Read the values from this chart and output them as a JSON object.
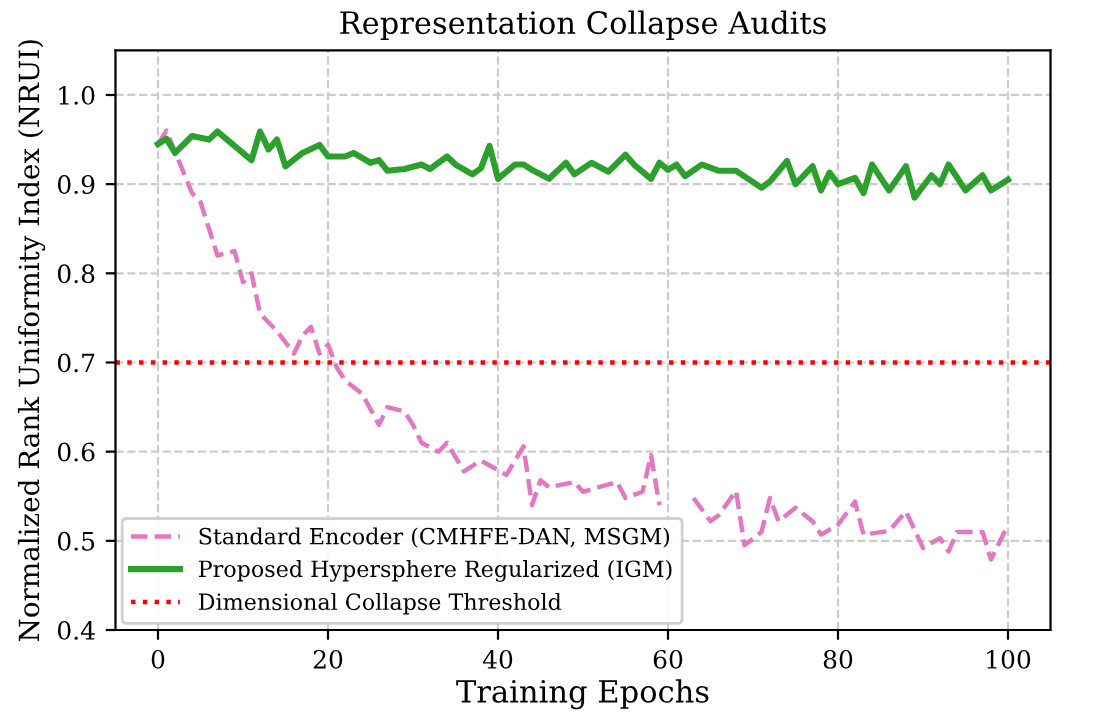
{
  "chart_data": {
    "type": "line",
    "title": "Representation Collapse Audits",
    "xlabel": "Training Epochs",
    "ylabel": "Normalized Rank Uniformity Index (NRUI)",
    "xlim": [
      -5,
      105
    ],
    "xticks": [
      0,
      20,
      40,
      60,
      80,
      100
    ],
    "ylim": [
      0.4,
      1.05
    ],
    "yticks": [
      0.4,
      0.5,
      0.6,
      0.7,
      0.8,
      0.9,
      {
        "value": 1.0,
        "label": "1.0"
      }
    ],
    "grid": true,
    "legend": "bottom left",
    "series": [
      {
        "name": "Standard Encoder (CMHFE-DAN, MSGM)",
        "color": "#e377c2",
        "line_style": "dashed",
        "x": [
          0,
          1,
          4,
          5,
          7,
          9,
          10,
          11,
          12,
          14,
          16,
          17,
          18,
          19,
          20,
          21,
          22,
          24,
          26,
          27,
          29,
          30,
          31,
          33,
          34,
          36,
          38,
          41,
          43,
          44,
          45,
          46,
          49,
          50,
          54,
          55,
          57,
          58,
          59,
          60,
          63,
          65,
          66,
          68,
          69,
          71,
          72,
          73,
          75,
          77,
          78,
          80,
          82,
          83,
          86,
          88,
          90,
          92,
          93,
          94,
          97,
          98,
          100
        ],
        "values": [
          0.945,
          0.96,
          0.89,
          0.88,
          0.82,
          0.825,
          0.79,
          0.8,
          0.755,
          0.735,
          0.71,
          0.73,
          0.74,
          0.71,
          0.72,
          0.695,
          0.68,
          0.665,
          0.63,
          0.65,
          0.645,
          0.63,
          0.61,
          0.6,
          0.61,
          0.578,
          0.59,
          0.574,
          0.606,
          0.54,
          0.568,
          0.56,
          0.566,
          0.555,
          0.566,
          0.548,
          0.555,
          0.596,
          0.54,
          null,
          0.548,
          0.522,
          0.529,
          0.556,
          0.495,
          0.51,
          0.548,
          0.522,
          0.537,
          0.522,
          0.507,
          0.518,
          0.544,
          0.507,
          0.511,
          0.533,
          0.492,
          0.503,
          0.488,
          0.51,
          0.51,
          0.479,
          0.518
        ]
      },
      {
        "name": "Proposed Hypersphere Regularized (IGM)",
        "color": "#2ca02c",
        "line_style": "solid",
        "x": [
          0,
          1,
          2,
          4,
          6,
          7,
          9,
          11,
          12,
          13,
          14,
          15,
          17,
          19,
          20,
          22,
          23,
          25,
          26,
          27,
          29,
          31,
          32,
          34,
          35,
          37,
          38,
          39,
          40,
          42,
          43,
          44,
          46,
          48,
          49,
          51,
          53,
          55,
          56,
          58,
          59,
          60,
          61,
          62,
          64,
          66,
          68,
          71,
          72,
          74,
          75,
          77,
          78,
          79,
          80,
          82,
          83,
          84,
          86,
          88,
          89,
          91,
          92,
          93,
          95,
          97,
          98,
          100
        ],
        "values": [
          0.945,
          0.951,
          0.935,
          0.954,
          0.95,
          0.959,
          0.943,
          0.927,
          0.959,
          0.939,
          0.95,
          0.92,
          0.935,
          0.944,
          0.931,
          0.931,
          0.935,
          0.924,
          0.927,
          0.915,
          0.917,
          0.922,
          0.917,
          0.931,
          0.922,
          0.911,
          0.918,
          0.943,
          0.906,
          0.922,
          0.922,
          0.916,
          0.906,
          0.924,
          0.911,
          0.924,
          0.914,
          0.933,
          0.922,
          0.906,
          0.924,
          0.916,
          0.922,
          0.909,
          0.922,
          0.915,
          0.915,
          0.896,
          0.903,
          0.926,
          0.9,
          0.92,
          0.893,
          0.913,
          0.9,
          0.907,
          0.89,
          0.922,
          0.893,
          0.92,
          0.885,
          0.91,
          0.9,
          0.922,
          0.893,
          0.91,
          0.893,
          0.905
        ]
      }
    ],
    "ref_lines": [
      {
        "axis": "y",
        "value": 0.7,
        "label": "Dimensional Collapse Threshold",
        "color": "#ff0000",
        "line_style": "dotted"
      }
    ]
  }
}
